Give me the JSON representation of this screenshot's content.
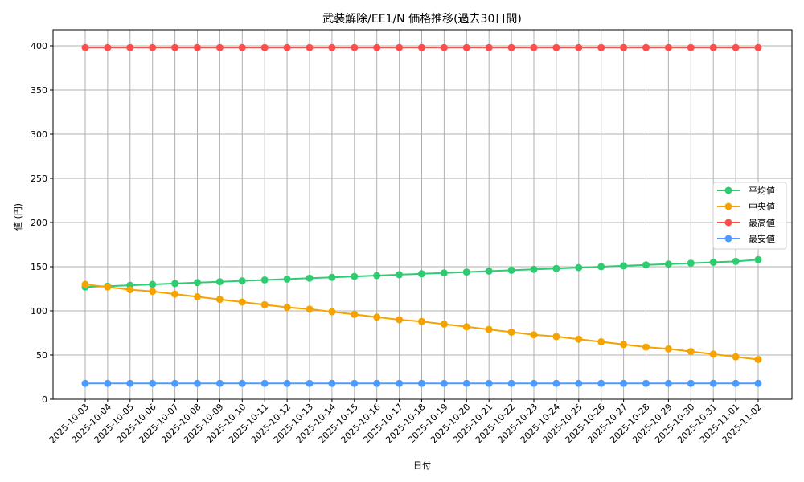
{
  "chart_data": {
    "type": "line",
    "title": "武装解除/EE1/N 価格推移(過去30日間)",
    "xlabel": "日付",
    "ylabel": "値 (円)",
    "ylim": [
      0,
      418
    ],
    "yticks": [
      0,
      50,
      100,
      150,
      200,
      250,
      300,
      350,
      400
    ],
    "grid": true,
    "legend_position": "center right",
    "categories": [
      "2025-10-03",
      "2025-10-04",
      "2025-10-05",
      "2025-10-06",
      "2025-10-07",
      "2025-10-08",
      "2025-10-09",
      "2025-10-10",
      "2025-10-11",
      "2025-10-12",
      "2025-10-13",
      "2025-10-14",
      "2025-10-15",
      "2025-10-16",
      "2025-10-17",
      "2025-10-18",
      "2025-10-19",
      "2025-10-20",
      "2025-10-21",
      "2025-10-22",
      "2025-10-23",
      "2025-10-24",
      "2025-10-25",
      "2025-10-26",
      "2025-10-27",
      "2025-10-28",
      "2025-10-29",
      "2025-10-30",
      "2025-10-31",
      "2025-11-01",
      "2025-11-02"
    ],
    "series": [
      {
        "name": "平均値",
        "color": "#2ecc71",
        "values": [
          127,
          128,
          129,
          130,
          131,
          132,
          133,
          134,
          135,
          136,
          137,
          138,
          139,
          140,
          141,
          142,
          143,
          144,
          145,
          146,
          147,
          148,
          149,
          150,
          151,
          152,
          153,
          154,
          155,
          156,
          158
        ]
      },
      {
        "name": "中央値",
        "color": "#f5a300",
        "values": [
          130,
          127,
          124,
          122,
          119,
          116,
          113,
          110,
          107,
          104,
          102,
          99,
          96,
          93,
          90,
          88,
          85,
          82,
          79,
          76,
          73,
          71,
          68,
          65,
          62,
          59,
          57,
          54,
          51,
          48,
          45
        ]
      },
      {
        "name": "最高値",
        "color": "#ff4d4d",
        "values": [
          398,
          398,
          398,
          398,
          398,
          398,
          398,
          398,
          398,
          398,
          398,
          398,
          398,
          398,
          398,
          398,
          398,
          398,
          398,
          398,
          398,
          398,
          398,
          398,
          398,
          398,
          398,
          398,
          398,
          398,
          398
        ]
      },
      {
        "name": "最安値",
        "color": "#4d9bff",
        "values": [
          18,
          18,
          18,
          18,
          18,
          18,
          18,
          18,
          18,
          18,
          18,
          18,
          18,
          18,
          18,
          18,
          18,
          18,
          18,
          18,
          18,
          18,
          18,
          18,
          18,
          18,
          18,
          18,
          18,
          18,
          18
        ]
      }
    ]
  }
}
